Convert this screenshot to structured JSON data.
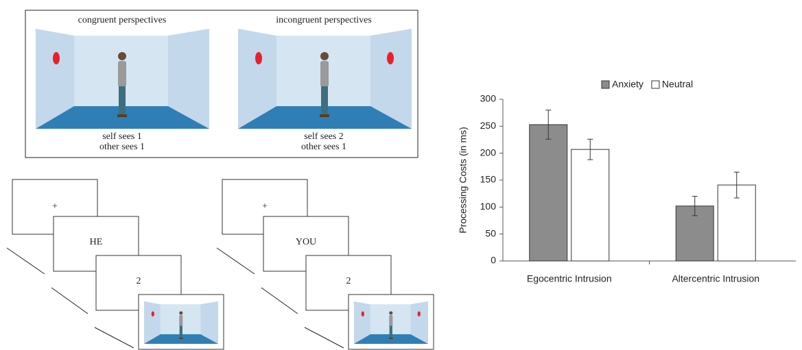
{
  "diagram": {
    "panels": [
      {
        "title": "congruent perspectives",
        "caption_lines": [
          "self sees 1",
          "other sees 1"
        ]
      },
      {
        "title": "incongruent perspectives",
        "caption_lines": [
          "self sees 2",
          "other sees 1"
        ]
      }
    ],
    "sequences": [
      {
        "frames": [
          "+",
          "HE",
          "2"
        ]
      },
      {
        "frames": [
          "+",
          "YOU",
          "2"
        ]
      }
    ]
  },
  "chart_data": {
    "type": "bar",
    "ylabel": "Processing Costs (in ms)",
    "categories": [
      "Egocentric Intrusion",
      "Altercentric Intrusion"
    ],
    "series": [
      {
        "name": "Anxiety",
        "color": "#8c8c8c",
        "values": [
          253,
          102
        ],
        "errors": [
          27,
          18
        ]
      },
      {
        "name": "Neutral",
        "color": "#ffffff",
        "values": [
          207,
          141
        ],
        "errors": [
          19,
          24
        ]
      }
    ],
    "ylim": [
      0,
      300
    ],
    "yticks": [
      0,
      50,
      100,
      150,
      200,
      250,
      300
    ],
    "legend": "top",
    "grid": false
  }
}
